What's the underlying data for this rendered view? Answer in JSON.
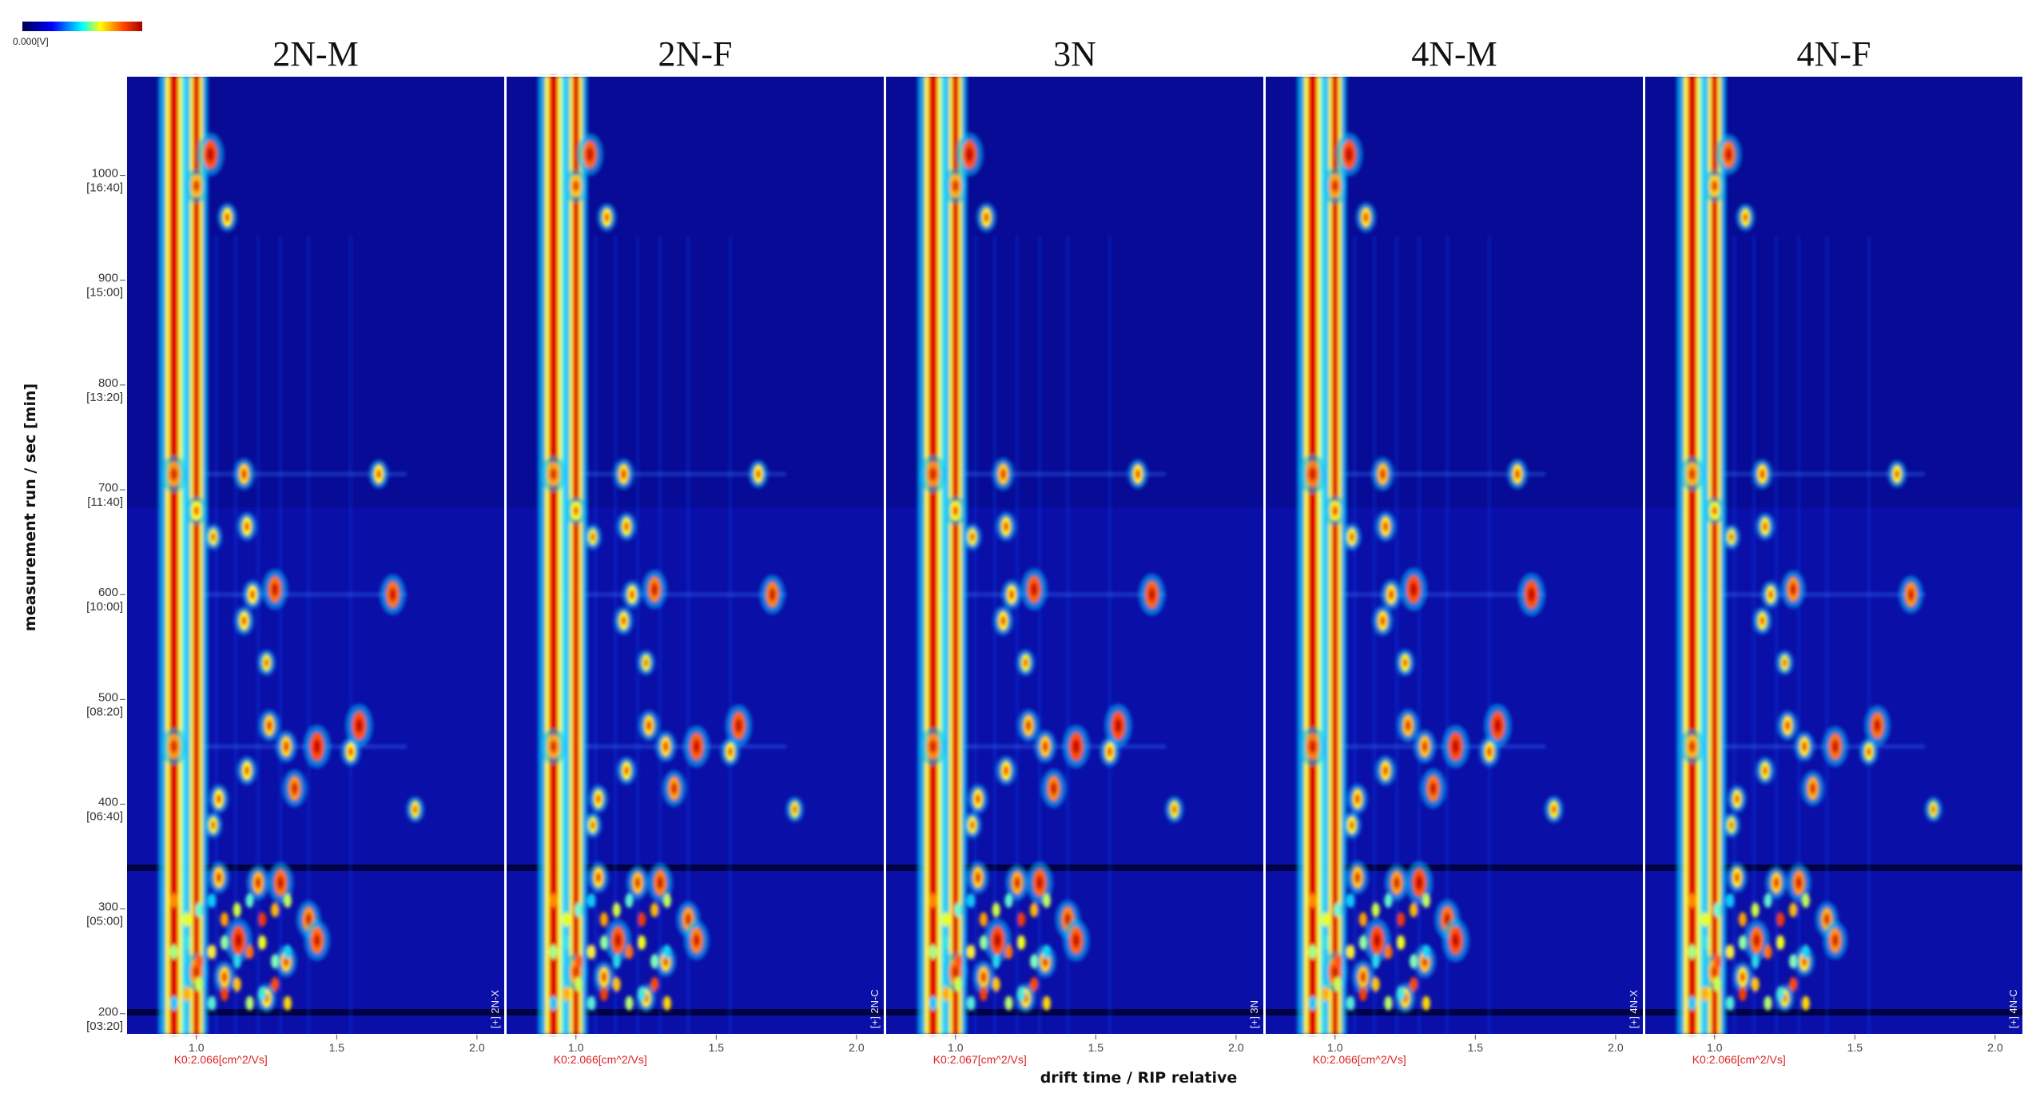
{
  "colorbar": {
    "label": "0.000[V]"
  },
  "chart_data": {
    "type": "heatmap",
    "xlabel": "drift time / RIP relative",
    "ylabel": "measurement run / sec [min]",
    "xlim": [
      0.75,
      2.1
    ],
    "ylim": [
      180,
      1095
    ],
    "x_ticks": [
      "1.0",
      "1.5",
      "2.0"
    ],
    "x_tick_values": [
      1.0,
      1.5,
      2.0
    ],
    "y_ticks": [
      {
        "value": 1000,
        "label": "1000",
        "sub": "[16:40]"
      },
      {
        "value": 900,
        "label": "900",
        "sub": "[15:00]"
      },
      {
        "value": 800,
        "label": "800",
        "sub": "[13:20]"
      },
      {
        "value": 700,
        "label": "700",
        "sub": "[11:40]"
      },
      {
        "value": 600,
        "label": "600",
        "sub": "[10:00]"
      },
      {
        "value": 500,
        "label": "500",
        "sub": "[08:20]"
      },
      {
        "value": 400,
        "label": "400",
        "sub": "[06:40]"
      },
      {
        "value": 300,
        "label": "300",
        "sub": "[05:00]"
      },
      {
        "value": 200,
        "label": "200",
        "sub": "[03:20]"
      }
    ],
    "panels": [
      {
        "title": "2N-M",
        "k0": "K0:2.066[cm^2/Vs]",
        "sample": "[+] 2N-X",
        "intensity_scale": 1.0
      },
      {
        "title": "2N-F",
        "k0": "K0:2.066[cm^2/Vs]",
        "sample": "[+] 2N-C",
        "intensity_scale": 0.95
      },
      {
        "title": "3N",
        "k0": "K0:2.067[cm^2/Vs]",
        "sample": "[+] 3N",
        "intensity_scale": 1.05
      },
      {
        "title": "4N-M",
        "k0": "K0:2.066[cm^2/Vs]",
        "sample": "[+] 4N-X",
        "intensity_scale": 1.1
      },
      {
        "title": "4N-F",
        "k0": "K0:2.066[cm^2/Vs]",
        "sample": "[+] 4N-C",
        "intensity_scale": 0.9
      }
    ],
    "rip_drift_times": [
      0.92,
      1.0
    ],
    "peaks": [
      {
        "x": 1.05,
        "y": 1020,
        "i": 1.0
      },
      {
        "x": 1.0,
        "y": 990,
        "i": 0.7
      },
      {
        "x": 1.11,
        "y": 960,
        "i": 0.5
      },
      {
        "x": 0.92,
        "y": 715,
        "i": 0.8
      },
      {
        "x": 1.17,
        "y": 715,
        "i": 0.6
      },
      {
        "x": 1.65,
        "y": 715,
        "i": 0.5
      },
      {
        "x": 1.0,
        "y": 680,
        "i": 0.5
      },
      {
        "x": 1.18,
        "y": 665,
        "i": 0.5
      },
      {
        "x": 1.06,
        "y": 655,
        "i": 0.4
      },
      {
        "x": 1.28,
        "y": 605,
        "i": 0.9
      },
      {
        "x": 1.2,
        "y": 600,
        "i": 0.5
      },
      {
        "x": 1.7,
        "y": 600,
        "i": 0.9
      },
      {
        "x": 1.17,
        "y": 575,
        "i": 0.5
      },
      {
        "x": 1.25,
        "y": 535,
        "i": 0.4
      },
      {
        "x": 1.58,
        "y": 475,
        "i": 1.0
      },
      {
        "x": 1.26,
        "y": 475,
        "i": 0.6
      },
      {
        "x": 1.43,
        "y": 455,
        "i": 1.0
      },
      {
        "x": 1.32,
        "y": 455,
        "i": 0.6
      },
      {
        "x": 0.92,
        "y": 455,
        "i": 0.8
      },
      {
        "x": 1.18,
        "y": 432,
        "i": 0.5
      },
      {
        "x": 1.35,
        "y": 415,
        "i": 0.8
      },
      {
        "x": 1.08,
        "y": 405,
        "i": 0.5
      },
      {
        "x": 1.06,
        "y": 380,
        "i": 0.4
      },
      {
        "x": 1.08,
        "y": 330,
        "i": 0.6
      },
      {
        "x": 1.22,
        "y": 325,
        "i": 0.7
      },
      {
        "x": 1.3,
        "y": 325,
        "i": 0.9
      },
      {
        "x": 1.4,
        "y": 290,
        "i": 0.8
      },
      {
        "x": 1.15,
        "y": 270,
        "i": 1.0
      },
      {
        "x": 1.43,
        "y": 270,
        "i": 0.9
      },
      {
        "x": 1.32,
        "y": 250,
        "i": 0.6
      },
      {
        "x": 1.0,
        "y": 240,
        "i": 0.8
      },
      {
        "x": 1.1,
        "y": 235,
        "i": 0.6
      },
      {
        "x": 1.25,
        "y": 215,
        "i": 0.5
      },
      {
        "x": 1.78,
        "y": 395,
        "i": 0.4
      },
      {
        "x": 1.55,
        "y": 450,
        "i": 0.5
      }
    ]
  }
}
